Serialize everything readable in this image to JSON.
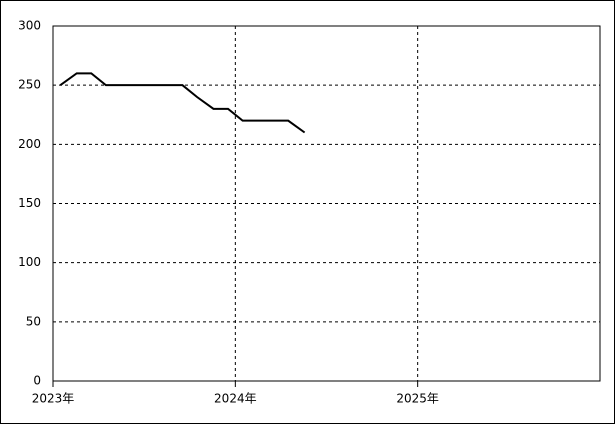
{
  "chart_data": {
    "type": "line",
    "x": [
      2023.04,
      2023.13,
      2023.21,
      2023.29,
      2023.38,
      2023.46,
      2023.54,
      2023.63,
      2023.71,
      2023.79,
      2023.88,
      2023.96,
      2024.04,
      2024.13,
      2024.21,
      2024.29,
      2024.38
    ],
    "values": [
      250,
      260,
      260,
      250,
      250,
      250,
      250,
      250,
      250,
      240,
      230,
      230,
      220,
      220,
      220,
      220,
      210
    ],
    "color": "#000000",
    "xlim": [
      2023,
      2026
    ],
    "xticks": [
      {
        "value": 2023,
        "label": "2023年"
      },
      {
        "value": 2024,
        "label": "2024年"
      },
      {
        "value": 2025,
        "label": "2025年"
      }
    ],
    "ylim": [
      0,
      300
    ],
    "yticks": [
      0,
      50,
      100,
      150,
      200,
      250,
      300
    ],
    "grid": true
  }
}
